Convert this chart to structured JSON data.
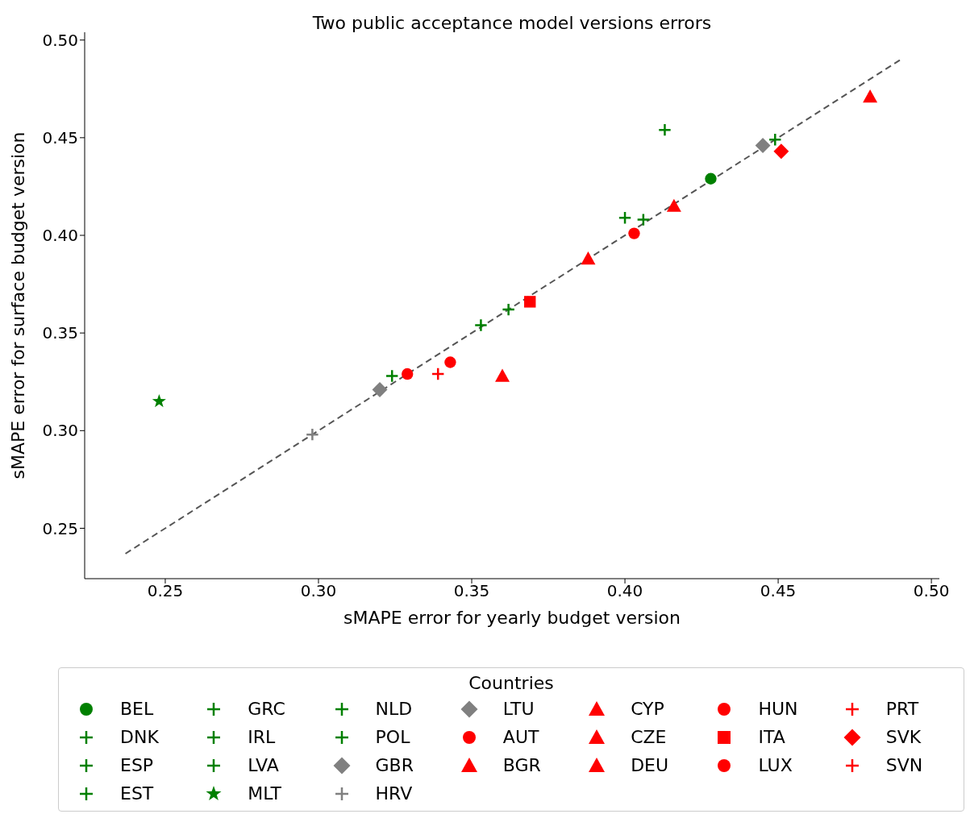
{
  "chart_data": {
    "type": "scatter",
    "title": "Two public acceptance model versions errors",
    "xlabel": "sMAPE error for yearly budget version",
    "ylabel": "sMAPE error for surface budget version",
    "legend_title": "Countries",
    "legend": "bottom",
    "grid": false,
    "xlim": [
      0.2237,
      0.5026
    ],
    "ylim": [
      0.2242,
      0.504
    ],
    "xticks": [
      {
        "value": 0.25,
        "label": "0.25"
      },
      {
        "value": 0.3,
        "label": "0.30"
      },
      {
        "value": 0.35,
        "label": "0.35"
      },
      {
        "value": 0.4,
        "label": "0.40"
      },
      {
        "value": 0.45,
        "label": "0.45"
      },
      {
        "value": 0.5,
        "label": "0.50"
      }
    ],
    "yticks": [
      {
        "value": 0.25,
        "label": "0.25"
      },
      {
        "value": 0.3,
        "label": "0.30"
      },
      {
        "value": 0.35,
        "label": "0.35"
      },
      {
        "value": 0.4,
        "label": "0.40"
      },
      {
        "value": 0.45,
        "label": "0.45"
      },
      {
        "value": 0.5,
        "label": "0.50"
      }
    ],
    "series": [
      {
        "type": "line",
        "color": "#555555",
        "line_style": "dashed",
        "marker": "none",
        "x": [
          0.237,
          0.49
        ],
        "values": [
          0.237,
          0.49
        ]
      },
      {
        "name": "BEL",
        "color": "#008000",
        "marker": "circle",
        "x": [
          0.428
        ],
        "values": [
          0.429
        ]
      },
      {
        "name": "DNK",
        "color": "#008000",
        "marker": "cross",
        "x": [
          0.4
        ],
        "values": [
          0.409
        ]
      },
      {
        "name": "ESP",
        "color": "#008000",
        "marker": "cross",
        "x": [
          0.406
        ],
        "values": [
          0.408
        ]
      },
      {
        "name": "EST",
        "color": "#008000",
        "marker": "cross",
        "x": [
          null
        ],
        "values": [
          null
        ]
      },
      {
        "name": "GRC",
        "color": "#008000",
        "marker": "cross",
        "x": [
          0.324
        ],
        "values": [
          0.328
        ]
      },
      {
        "name": "IRL",
        "color": "#008000",
        "marker": "cross",
        "x": [
          0.353
        ],
        "values": [
          0.354
        ]
      },
      {
        "name": "LVA",
        "color": "#008000",
        "marker": "cross",
        "x": [
          0.362
        ],
        "values": [
          0.362
        ]
      },
      {
        "name": "MLT",
        "color": "#008000",
        "marker": "star",
        "x": [
          0.248
        ],
        "values": [
          0.315
        ]
      },
      {
        "name": "NLD",
        "color": "#008000",
        "marker": "cross",
        "x": [
          0.413
        ],
        "values": [
          0.454
        ]
      },
      {
        "name": "POL",
        "color": "#008000",
        "marker": "cross",
        "x": [
          0.449
        ],
        "values": [
          0.449
        ]
      },
      {
        "name": "GBR",
        "color": "#808080",
        "marker": "diamond",
        "x": [
          0.445
        ],
        "values": [
          0.446
        ]
      },
      {
        "name": "HRV",
        "color": "#808080",
        "marker": "cross",
        "x": [
          0.298
        ],
        "values": [
          0.298
        ]
      },
      {
        "name": "LTU",
        "color": "#808080",
        "marker": "diamond",
        "x": [
          0.32
        ],
        "values": [
          0.321
        ]
      },
      {
        "name": "AUT",
        "color": "#ff0000",
        "marker": "circle",
        "x": [
          0.343
        ],
        "values": [
          0.335
        ]
      },
      {
        "name": "BGR",
        "color": "#ff0000",
        "marker": "triangle",
        "x": [
          0.388
        ],
        "values": [
          0.388
        ]
      },
      {
        "name": "CYP",
        "color": "#ff0000",
        "marker": "triangle",
        "x": [
          0.36
        ],
        "values": [
          0.328
        ]
      },
      {
        "name": "CZE",
        "color": "#ff0000",
        "marker": "triangle",
        "x": [
          0.48
        ],
        "values": [
          0.471
        ]
      },
      {
        "name": "DEU",
        "color": "#ff0000",
        "marker": "triangle",
        "x": [
          0.416
        ],
        "values": [
          0.415
        ]
      },
      {
        "name": "HUN",
        "color": "#ff0000",
        "marker": "circle",
        "x": [
          0.329
        ],
        "values": [
          0.329
        ]
      },
      {
        "name": "ITA",
        "color": "#ff0000",
        "marker": "square",
        "x": [
          0.369
        ],
        "values": [
          0.366
        ]
      },
      {
        "name": "LUX",
        "color": "#ff0000",
        "marker": "circle",
        "x": [
          0.403
        ],
        "values": [
          0.401
        ]
      },
      {
        "name": "PRT",
        "color": "#ff0000",
        "marker": "cross",
        "x": [
          0.339
        ],
        "values": [
          0.329
        ]
      },
      {
        "name": "SVK",
        "color": "#ff0000",
        "marker": "diamond",
        "x": [
          0.451
        ],
        "values": [
          0.443
        ]
      },
      {
        "name": "SVN",
        "color": "#ff0000",
        "marker": "cross",
        "x": [
          null
        ],
        "values": [
          null
        ]
      }
    ]
  }
}
